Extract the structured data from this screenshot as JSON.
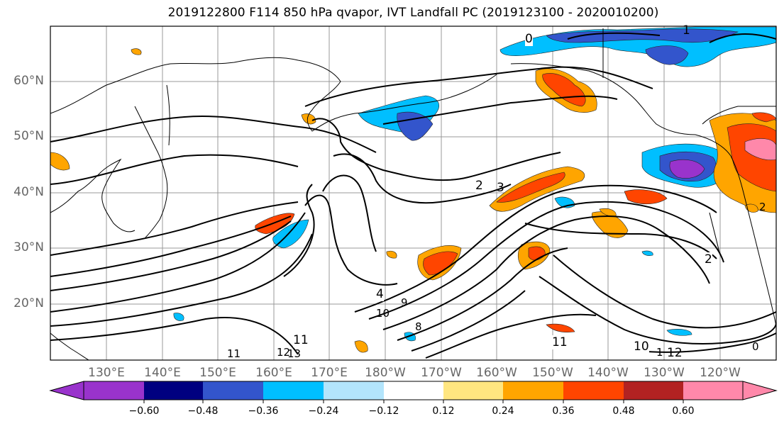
{
  "title": "2019122800 F114 850 hPa qvapor, IVT Landfall PC (2019123100 - 2020010200)",
  "lat_labels": [
    "60°N",
    "50°N",
    "40°N",
    "30°N",
    "20°N"
  ],
  "lon_labels": [
    "130°E",
    "140°E",
    "150°E",
    "160°E",
    "170°E",
    "180°W",
    "170°W",
    "160°W",
    "150°W",
    "140°W",
    "130°W",
    "120°W"
  ],
  "contour_labels": [
    "0",
    "1",
    "2",
    "3",
    "4",
    "8",
    "9",
    "10",
    "11",
    "12",
    "13",
    "2",
    "11",
    "11",
    "10",
    "12",
    "1",
    "0",
    "2"
  ],
  "colorbar": {
    "ticks": [
      "−0.60",
      "−0.48",
      "−0.36",
      "−0.24",
      "−0.12",
      "0.12",
      "0.24",
      "0.36",
      "0.48",
      "0.60"
    ],
    "colors": [
      "#9933cc",
      "#000080",
      "#3355cc",
      "#00bfff",
      "#b3e5fc",
      "#ffffff",
      "#ffe680",
      "#ffa500",
      "#ff4500",
      "#b22222",
      "#ff88aa"
    ]
  }
}
